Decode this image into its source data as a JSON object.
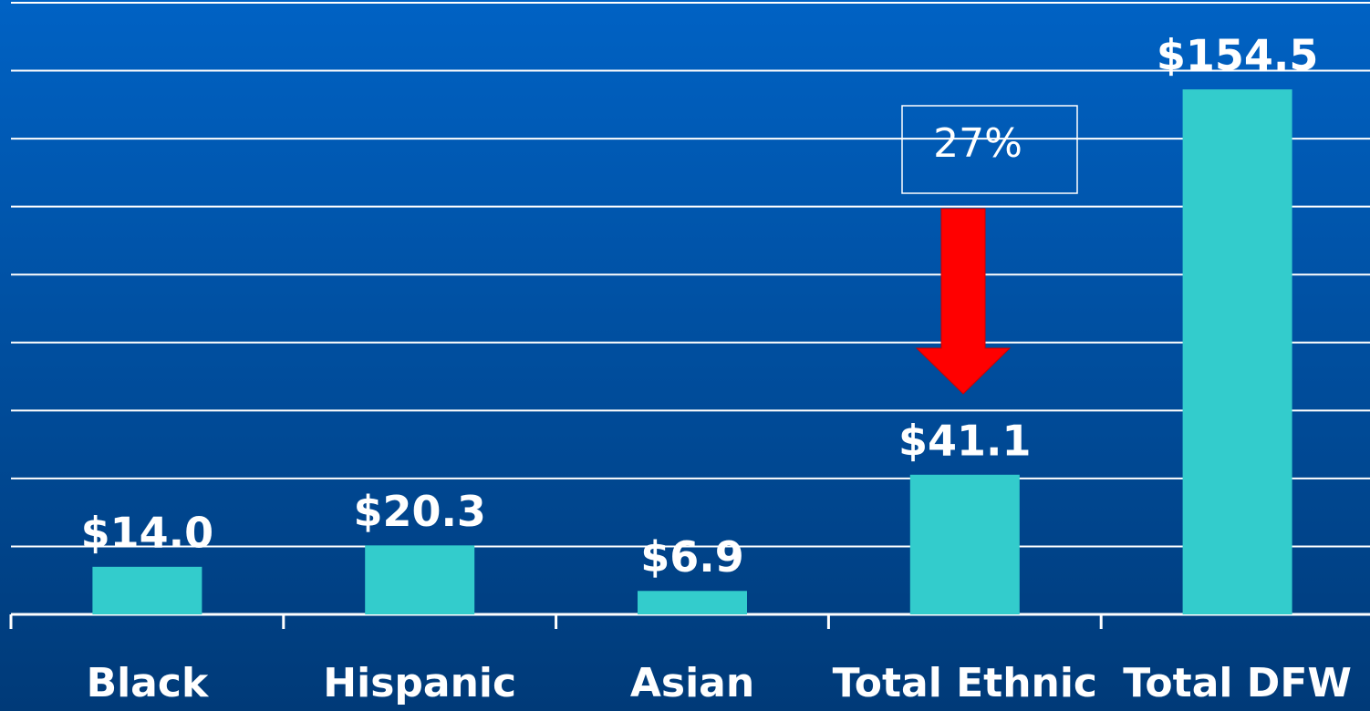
{
  "chart_data": {
    "type": "bar",
    "categories": [
      "Black",
      "Hispanic",
      "Asian",
      "Total Ethnic",
      "Total DFW"
    ],
    "values": [
      14.0,
      20.3,
      6.9,
      41.1,
      154.5
    ],
    "value_labels": [
      "$14.0",
      "$20.3",
      "$6.9",
      "$41.1",
      "$154.5"
    ],
    "color": "#33cccc",
    "ylim": [
      0,
      180
    ],
    "yticks": [
      0,
      20,
      40,
      60,
      80,
      100,
      120,
      140,
      160,
      180
    ],
    "grid": true,
    "annotation": "27%"
  }
}
